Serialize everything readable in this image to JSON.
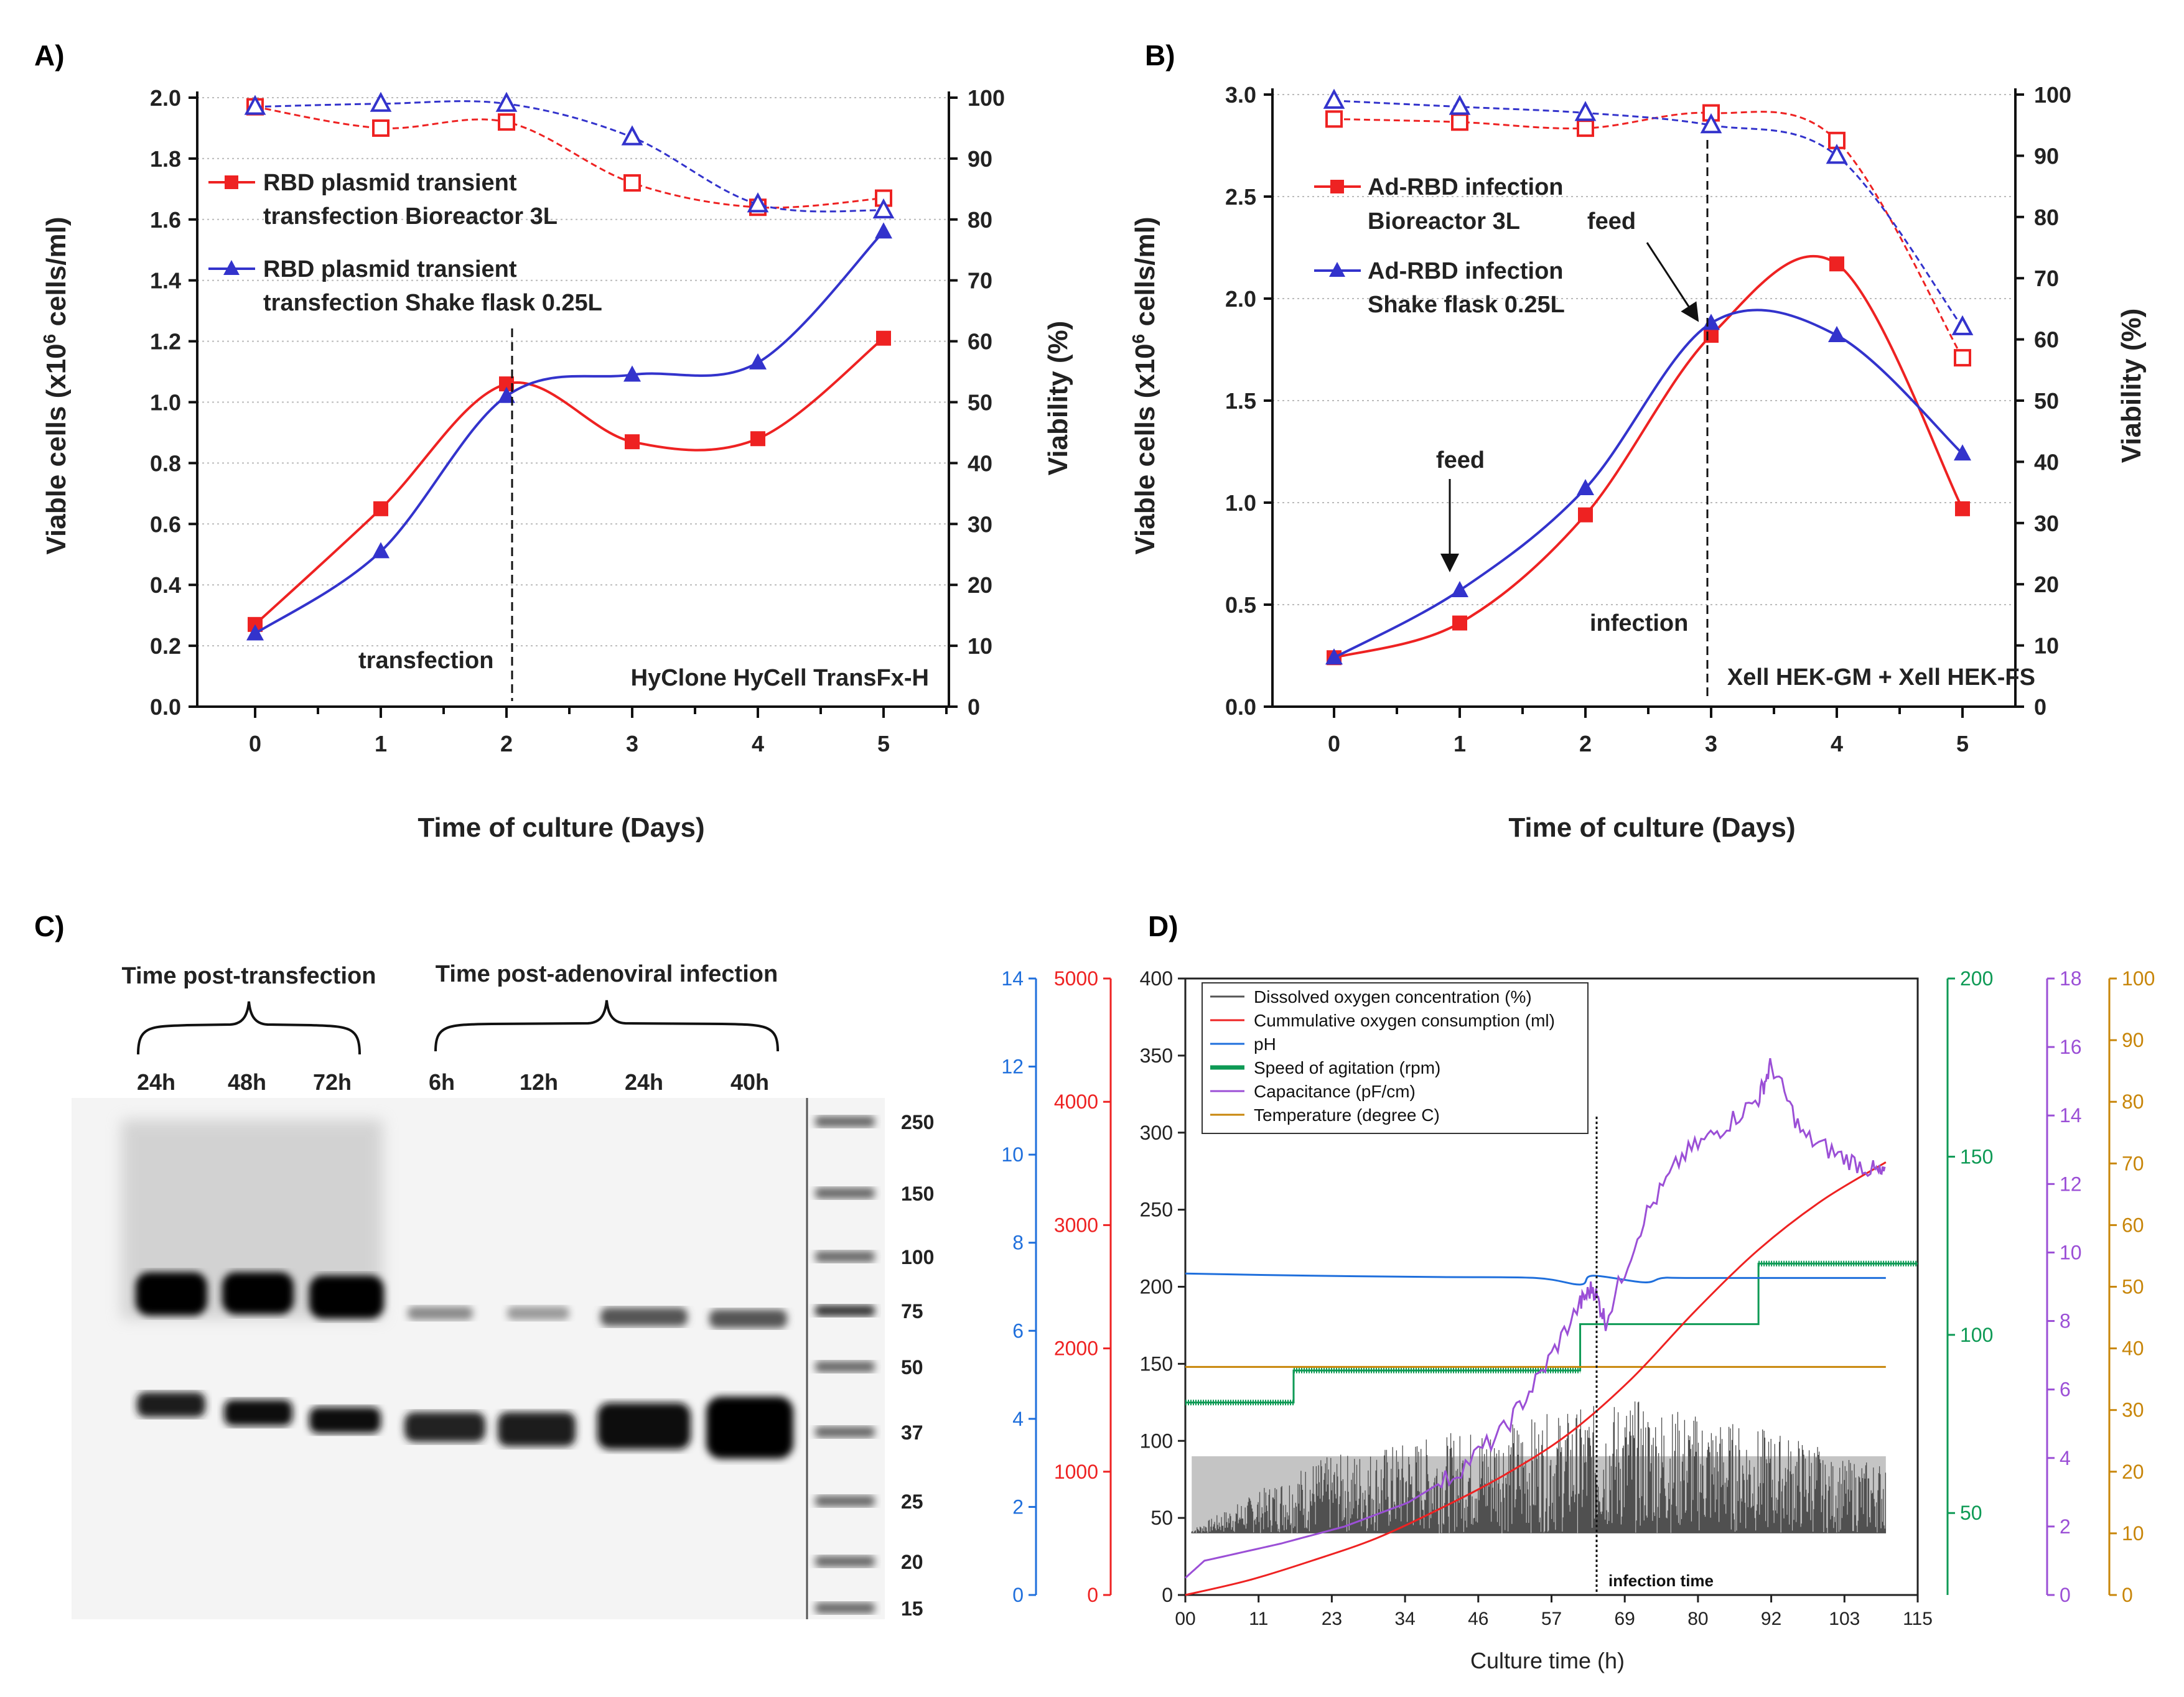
{
  "panels": {
    "A": {
      "letter": "A)",
      "chart_data": {
        "type": "line",
        "ylabel": "Viable cells (x10",
        "ylabel_sup": "6",
        "ylabel_tail": " cells/ml)",
        "y2label": "Viability (%)",
        "xlabel": "Time of culture (Days)",
        "x": [
          0,
          1,
          2,
          3,
          4,
          5
        ],
        "ylim": [
          0,
          2.0
        ],
        "yticks": [
          "0.0",
          "0.2",
          "0.4",
          "0.6",
          "0.8",
          "1.0",
          "1.2",
          "1.4",
          "1.6",
          "1.8",
          "2.0"
        ],
        "y2lim": [
          0,
          100
        ],
        "y2ticks": [
          "0",
          "10",
          "20",
          "30",
          "40",
          "50",
          "60",
          "70",
          "80",
          "90",
          "100"
        ],
        "xticks": [
          "0",
          "1",
          "2",
          "3",
          "4",
          "5"
        ],
        "series": [
          {
            "name": "RBD plasmid transient transfection Bioreactor 3L",
            "legend": [
              "RBD plasmid transient",
              "transfection Bioreactor 3L"
            ],
            "color": "#ee2222",
            "marker": "square",
            "axis": "left",
            "values": [
              0.27,
              0.65,
              1.06,
              0.87,
              0.88,
              1.21
            ]
          },
          {
            "name": "RBD plasmid transient transfection Shake flask 0.25L",
            "legend": [
              "RBD plasmid transient",
              "transfection Shake flask 0.25L"
            ],
            "color": "#3333cc",
            "marker": "triangle",
            "axis": "left",
            "values": [
              0.24,
              0.51,
              1.02,
              1.09,
              1.13,
              1.56
            ]
          },
          {
            "name": "Viability bioreactor",
            "color": "#ee2222",
            "marker": "square-open",
            "axis": "right",
            "dashed": true,
            "values": [
              98.5,
              95,
              96,
              86,
              82,
              83.5
            ]
          },
          {
            "name": "Viability shake flask",
            "color": "#3333cc",
            "marker": "triangle-open",
            "axis": "right",
            "dashed": true,
            "values": [
              98.5,
              99,
              99,
              93.5,
              82.5,
              81.5
            ]
          }
        ],
        "annotations": {
          "transfection": "transfection",
          "medium": "HyClone HyCell TransFx-H",
          "transfection_day": 2
        }
      }
    },
    "B": {
      "letter": "B)",
      "chart_data": {
        "type": "line",
        "ylabel": "Viable cells (x10",
        "ylabel_sup": "6",
        "ylabel_tail": " cells/ml)",
        "y2label": "Viability (%)",
        "xlabel": "Time of culture (Days)",
        "x": [
          0,
          1,
          2,
          3,
          4,
          5
        ],
        "ylim": [
          0,
          3.0
        ],
        "yticks": [
          "0.0",
          "0.5",
          "1.0",
          "1.5",
          "2.0",
          "2.5",
          "3.0"
        ],
        "y2lim": [
          0,
          100
        ],
        "y2ticks": [
          "0",
          "10",
          "20",
          "30",
          "40",
          "50",
          "60",
          "70",
          "80",
          "90",
          "100"
        ],
        "xticks": [
          "0",
          "1",
          "2",
          "3",
          "4",
          "5"
        ],
        "series": [
          {
            "name": "Ad-RBD infection Bioreactor 3L",
            "legend": [
              "Ad-RBD infection",
              "Bioreactor 3L"
            ],
            "color": "#ee2222",
            "marker": "square",
            "axis": "left",
            "values": [
              0.24,
              0.41,
              0.94,
              1.82,
              2.17,
              0.97
            ]
          },
          {
            "name": "Ad-RBD infection Shake flask 0.25L",
            "legend": [
              "Ad-RBD infection",
              "Shake flask 0.25L"
            ],
            "color": "#3333cc",
            "marker": "triangle",
            "axis": "left",
            "values": [
              0.24,
              0.57,
              1.07,
              1.88,
              1.82,
              1.24
            ]
          },
          {
            "name": "Viability bioreactor",
            "color": "#ee2222",
            "marker": "square-open",
            "axis": "right",
            "dashed": true,
            "values": [
              96,
              95.5,
              94.5,
              97,
              92.5,
              57
            ]
          },
          {
            "name": "Viability shake flask",
            "color": "#3333cc",
            "marker": "triangle-open",
            "axis": "right",
            "dashed": true,
            "values": [
              99,
              98,
              97,
              95,
              90,
              62
            ]
          }
        ],
        "annotations": {
          "feed": "feed",
          "infection": "infection",
          "medium": "Xell HEK-GM + Xell HEK-FS",
          "infection_day": 3,
          "feed_days": [
            1,
            3
          ]
        }
      }
    },
    "C": {
      "letter": "C)",
      "group1": "Time post-transfection",
      "group2": "Time post-adenoviral infection",
      "lanes": [
        "24h",
        "48h",
        "72h",
        "6h",
        "12h",
        "24h",
        "40h"
      ],
      "ladder": [
        "250",
        "150",
        "100",
        "75",
        "50",
        "37",
        "25",
        "20",
        "15"
      ]
    },
    "D": {
      "letter": "D)",
      "chart_data": {
        "type": "line",
        "xlabel": "Culture time (h)",
        "xticks": [
          "00",
          "11",
          "23",
          "34",
          "46",
          "57",
          "69",
          "80",
          "92",
          "103",
          "115"
        ],
        "xlim": [
          0,
          115
        ],
        "infection_label": "infection time",
        "infection_time": 62,
        "legend": [
          {
            "label": "Dissolved oxygen concentration (%)",
            "color": "#555555"
          },
          {
            "label": "Cummulative oxygen consumption (ml)",
            "color": "#ee2222"
          },
          {
            "label": "pH",
            "color": "#1f6fdc"
          },
          {
            "label": "Speed of agitation (rpm)",
            "color": "#0e9a55"
          },
          {
            "label": "Capacitance (pF/cm)",
            "color": "#9b4fd6"
          },
          {
            "label": "Temperature (degree C)",
            "color": "#c8860a"
          }
        ],
        "axes": {
          "ph": {
            "color": "#1f6fdc",
            "ticks": [
              "0",
              "2",
              "4",
              "6",
              "8",
              "10",
              "12",
              "14"
            ],
            "lim": [
              0,
              14
            ]
          },
          "oxygen_consumption": {
            "color": "#ee2222",
            "ticks": [
              "0",
              "1000",
              "2000",
              "3000",
              "4000",
              "5000"
            ],
            "lim": [
              0,
              5000
            ]
          },
          "dissolved_oxygen": {
            "color": "#222222",
            "ticks": [
              "0",
              "50",
              "100",
              "150",
              "200",
              "250",
              "300",
              "350",
              "400"
            ],
            "lim": [
              0,
              400
            ]
          },
          "agitation": {
            "color": "#0e9a55",
            "ticks": [
              "50",
              "100",
              "150",
              "200"
            ],
            "lim": [
              27,
              200
            ]
          },
          "capacitance": {
            "color": "#9b4fd6",
            "ticks": [
              "0",
              "2",
              "4",
              "6",
              "8",
              "10",
              "12",
              "14",
              "16",
              "18"
            ],
            "lim": [
              0,
              18
            ]
          },
          "temperature": {
            "color": "#c8860a",
            "ticks": [
              "0",
              "10",
              "20",
              "30",
              "40",
              "50",
              "60",
              "70",
              "80",
              "90",
              "100"
            ],
            "lim": [
              0,
              100
            ]
          }
        },
        "series": {
          "ph": {
            "x": [
              0,
              20,
              40,
              55,
              62,
              64,
              72,
              75,
              80,
              115
            ],
            "y": [
              7.3,
              7.25,
              7.22,
              7.2,
              7.05,
              7.25,
              7.1,
              7.2,
              7.2,
              7.2
            ]
          },
          "oxygen_consumption": {
            "x": [
              0,
              10,
              20,
              30,
              40,
              50,
              60,
              70,
              80,
              90,
              100,
              115
            ],
            "y": [
              0,
              120,
              280,
              460,
              700,
              970,
              1300,
              1750,
              2300,
              2800,
              3200,
              3510
            ]
          },
          "agitation_steps": [
            {
              "x0": 0,
              "x1": 17,
              "y": 81
            },
            {
              "x0": 17,
              "x1": 62,
              "y": 90
            },
            {
              "x0": 62,
              "x1": 90,
              "y": 103
            },
            {
              "x0": 90,
              "x1": 115,
              "y": 120
            }
          ],
          "temperature": {
            "x": [
              0,
              115
            ],
            "y": [
              37,
              37
            ]
          },
          "capacitance": {
            "x": [
              0,
              3,
              15,
              25,
              35,
              42,
              50,
              56,
              62,
              64,
              66,
              72,
              78,
              84,
              90,
              92,
              97,
              103,
              108,
              110
            ],
            "y": [
              0.5,
              1.0,
              1.5,
              2.0,
              2.7,
              3.5,
              4.8,
              6.5,
              8.5,
              9.0,
              8.0,
              11.0,
              12.8,
              13.6,
              14.5,
              15.5,
              13.4,
              12.8,
              12.4,
              12.2
            ]
          }
        }
      }
    }
  }
}
